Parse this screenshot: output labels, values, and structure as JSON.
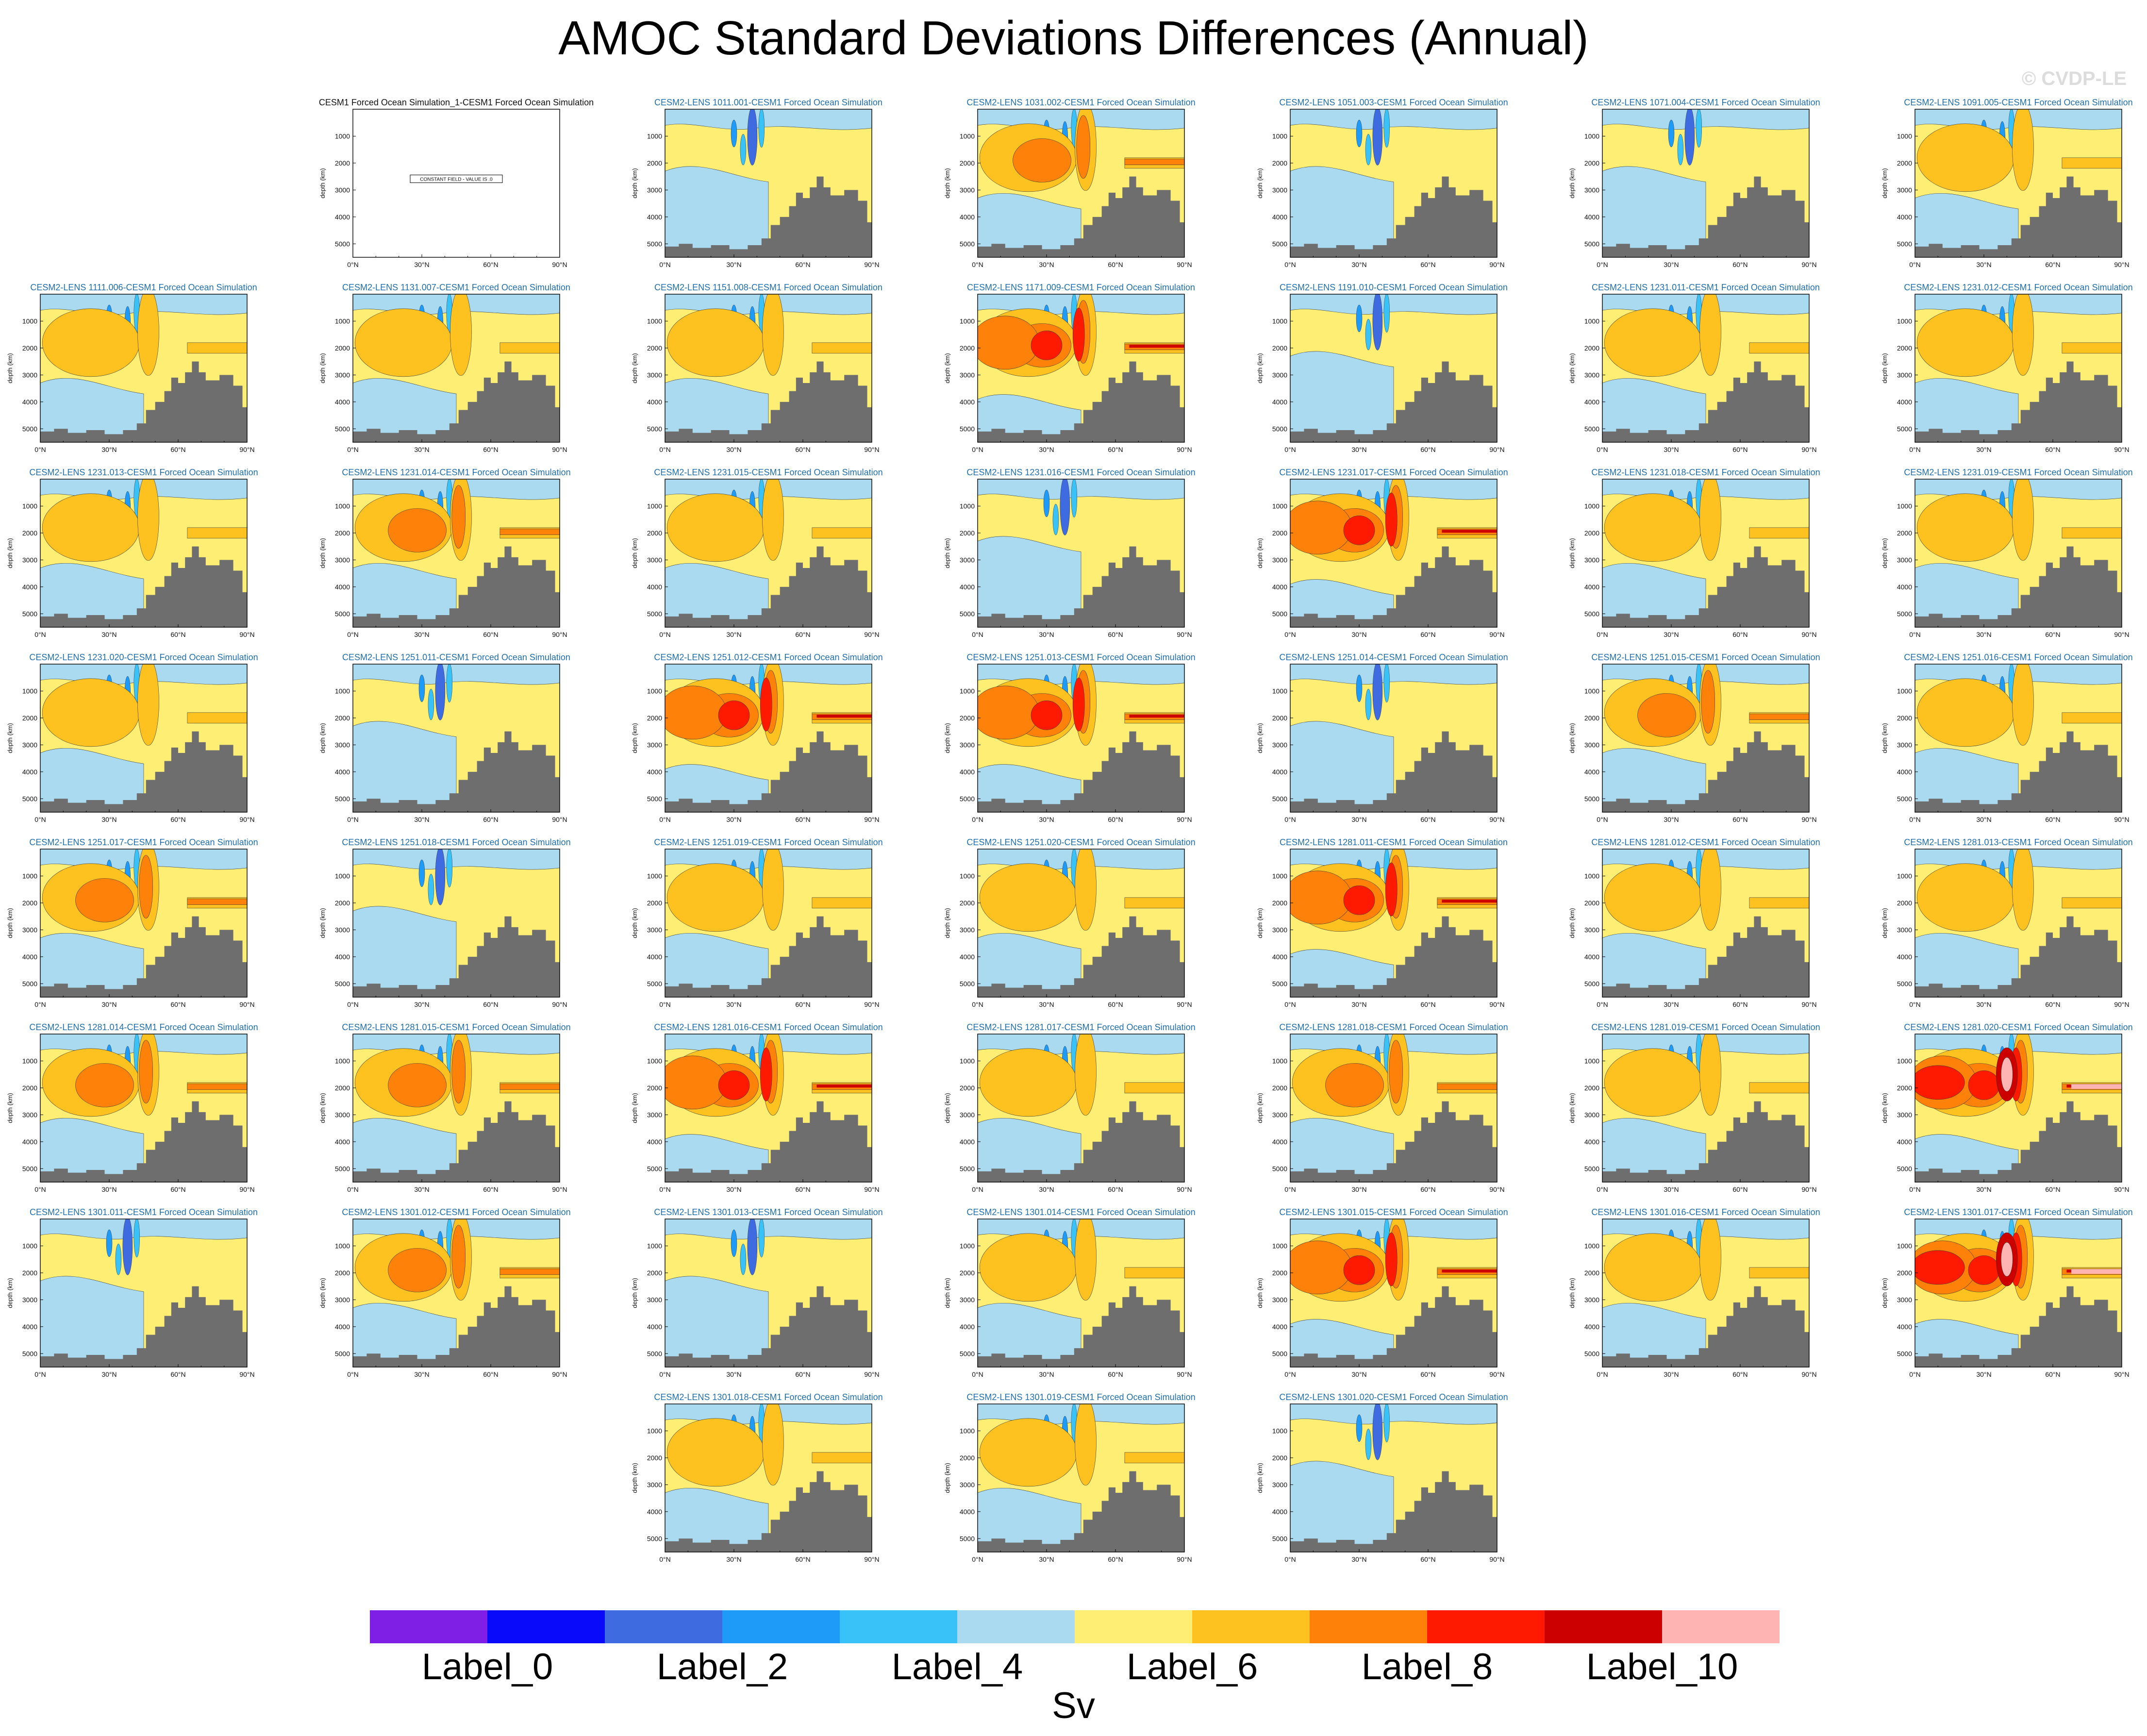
{
  "title": "AMOC Standard Deviations Differences (Annual)",
  "watermark": "© CVDP-LE",
  "colorbar": {
    "units": "Sv",
    "colors": [
      "#7f1fe6",
      "#0a0afa",
      "#3e6be0",
      "#1e9af8",
      "#39c2f7",
      "#a9daf0",
      "#feee74",
      "#fdc220",
      "#fe820a",
      "#fe1a00",
      "#cd0000",
      "#ffb4b4"
    ],
    "labels": [
      "Label_0",
      "Label_2",
      "Label_4",
      "Label_6",
      "Label_8",
      "Label_10"
    ]
  },
  "axes": {
    "xticks": [
      "0°N",
      "30°N",
      "60°N",
      "90°N"
    ],
    "yticks": [
      "1000",
      "2000",
      "3000",
      "4000",
      "5000"
    ],
    "ylabel": "depth (km)"
  },
  "constant_field_label": "CONSTANT FIELD - VALUE IS .0",
  "chart_data": {
    "type": "heatmap",
    "title": "AMOC Standard Deviations Differences (Annual)",
    "units": "Sv",
    "xlim": [
      0,
      90
    ],
    "ylim": [
      0,
      5500
    ],
    "xlabel": "",
    "ylabel": "depth (km)",
    "panels": [
      {
        "title": "CESM1 Forced Ocean Simulation_1-CESM1 Forced Ocean Simulation",
        "level": 0
      },
      {
        "title": "CESM2-LENS 1011.001-CESM1 Forced Ocean Simulation",
        "level": 0
      },
      {
        "title": "CESM2-LENS 1031.002-CESM1 Forced Ocean Simulation",
        "level": 2
      },
      {
        "title": "CESM2-LENS 1051.003-CESM1 Forced Ocean Simulation",
        "level": 0
      },
      {
        "title": "CESM2-LENS 1071.004-CESM1 Forced Ocean Simulation",
        "level": 0
      },
      {
        "title": "CESM2-LENS 1091.005-CESM1 Forced Ocean Simulation",
        "level": 1
      },
      {
        "title": "CESM2-LENS 1111.006-CESM1 Forced Ocean Simulation",
        "level": 1
      },
      {
        "title": "CESM2-LENS 1131.007-CESM1 Forced Ocean Simulation",
        "level": 1
      },
      {
        "title": "CESM2-LENS 1151.008-CESM1 Forced Ocean Simulation",
        "level": 1
      },
      {
        "title": "CESM2-LENS 1171.009-CESM1 Forced Ocean Simulation",
        "level": 3
      },
      {
        "title": "CESM2-LENS 1191.010-CESM1 Forced Ocean Simulation",
        "level": 0
      },
      {
        "title": "CESM2-LENS 1231.011-CESM1 Forced Ocean Simulation",
        "level": 1
      },
      {
        "title": "CESM2-LENS 1231.012-CESM1 Forced Ocean Simulation",
        "level": 1
      },
      {
        "title": "CESM2-LENS 1231.013-CESM1 Forced Ocean Simulation",
        "level": 1
      },
      {
        "title": "CESM2-LENS 1231.014-CESM1 Forced Ocean Simulation",
        "level": 2
      },
      {
        "title": "CESM2-LENS 1231.015-CESM1 Forced Ocean Simulation",
        "level": 1
      },
      {
        "title": "CESM2-LENS 1231.016-CESM1 Forced Ocean Simulation",
        "level": 0
      },
      {
        "title": "CESM2-LENS 1231.017-CESM1 Forced Ocean Simulation",
        "level": 3
      },
      {
        "title": "CESM2-LENS 1231.018-CESM1 Forced Ocean Simulation",
        "level": 1
      },
      {
        "title": "CESM2-LENS 1231.019-CESM1 Forced Ocean Simulation",
        "level": 1
      },
      {
        "title": "CESM2-LENS 1231.020-CESM1 Forced Ocean Simulation",
        "level": 1
      },
      {
        "title": "CESM2-LENS 1251.011-CESM1 Forced Ocean Simulation",
        "level": 0
      },
      {
        "title": "CESM2-LENS 1251.012-CESM1 Forced Ocean Simulation",
        "level": 3
      },
      {
        "title": "CESM2-LENS 1251.013-CESM1 Forced Ocean Simulation",
        "level": 3
      },
      {
        "title": "CESM2-LENS 1251.014-CESM1 Forced Ocean Simulation",
        "level": 0
      },
      {
        "title": "CESM2-LENS 1251.015-CESM1 Forced Ocean Simulation",
        "level": 2
      },
      {
        "title": "CESM2-LENS 1251.016-CESM1 Forced Ocean Simulation",
        "level": 1
      },
      {
        "title": "CESM2-LENS 1251.017-CESM1 Forced Ocean Simulation",
        "level": 2
      },
      {
        "title": "CESM2-LENS 1251.018-CESM1 Forced Ocean Simulation",
        "level": 0
      },
      {
        "title": "CESM2-LENS 1251.019-CESM1 Forced Ocean Simulation",
        "level": 1
      },
      {
        "title": "CESM2-LENS 1251.020-CESM1 Forced Ocean Simulation",
        "level": 1
      },
      {
        "title": "CESM2-LENS 1281.011-CESM1 Forced Ocean Simulation",
        "level": 3
      },
      {
        "title": "CESM2-LENS 1281.012-CESM1 Forced Ocean Simulation",
        "level": 1
      },
      {
        "title": "CESM2-LENS 1281.013-CESM1 Forced Ocean Simulation",
        "level": 1
      },
      {
        "title": "CESM2-LENS 1281.014-CESM1 Forced Ocean Simulation",
        "level": 2
      },
      {
        "title": "CESM2-LENS 1281.015-CESM1 Forced Ocean Simulation",
        "level": 2
      },
      {
        "title": "CESM2-LENS 1281.016-CESM1 Forced Ocean Simulation",
        "level": 3
      },
      {
        "title": "CESM2-LENS 1281.017-CESM1 Forced Ocean Simulation",
        "level": 1
      },
      {
        "title": "CESM2-LENS 1281.018-CESM1 Forced Ocean Simulation",
        "level": 2
      },
      {
        "title": "CESM2-LENS 1281.019-CESM1 Forced Ocean Simulation",
        "level": 1
      },
      {
        "title": "CESM2-LENS 1281.020-CESM1 Forced Ocean Simulation",
        "level": 4
      },
      {
        "title": "CESM2-LENS 1301.011-CESM1 Forced Ocean Simulation",
        "level": 0
      },
      {
        "title": "CESM2-LENS 1301.012-CESM1 Forced Ocean Simulation",
        "level": 2
      },
      {
        "title": "CESM2-LENS 1301.013-CESM1 Forced Ocean Simulation",
        "level": 0
      },
      {
        "title": "CESM2-LENS 1301.014-CESM1 Forced Ocean Simulation",
        "level": 1
      },
      {
        "title": "CESM2-LENS 1301.015-CESM1 Forced Ocean Simulation",
        "level": 3
      },
      {
        "title": "CESM2-LENS 1301.016-CESM1 Forced Ocean Simulation",
        "level": 1
      },
      {
        "title": "CESM2-LENS 1301.017-CESM1 Forced Ocean Simulation",
        "level": 4
      },
      {
        "title": "CESM2-LENS 1301.018-CESM1 Forced Ocean Simulation",
        "level": 1
      },
      {
        "title": "CESM2-LENS 1301.019-CESM1 Forced Ocean Simulation",
        "level": 1
      },
      {
        "title": "CESM2-LENS 1301.020-CESM1 Forced Ocean Simulation",
        "level": 0
      }
    ]
  }
}
